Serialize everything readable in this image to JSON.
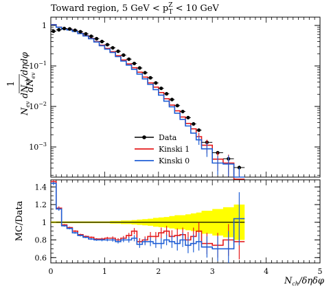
{
  "chart_data": [
    {
      "type": "line",
      "title": "Toward region, 5 GeV < p",
      "title_sup": "Z",
      "title_sub": "T",
      "title_tail": " < 10 GeV",
      "ylabel_prefix": "1",
      "ylabel_num": "dN",
      "ylabel_num_sub": "ev",
      "ylabel_den_n": "N",
      "ylabel_den_n_sub": "ev",
      "ylabel_den_tail": " dN",
      "ylabel_den_sub": "ch",
      "ylabel_den_end": "/dηdφ",
      "yscale": "log",
      "ylim": [
        0.00018,
        1.6
      ],
      "xlim": [
        0,
        5
      ],
      "yticks": [
        {
          "value": 1,
          "label": "1"
        },
        {
          "value": 0.1,
          "label": "10",
          "sup": "−1"
        },
        {
          "value": 0.01,
          "label": "10",
          "sup": "−2"
        },
        {
          "value": 0.001,
          "label": "10",
          "sup": "−3"
        }
      ],
      "legend": {
        "position": "bottom-center",
        "entries": [
          {
            "label": "Data",
            "color": "#000000",
            "marker": "point"
          },
          {
            "label": "Kinski 1",
            "color": "#e41a1c",
            "marker": "line"
          },
          {
            "label": "Kinski 0",
            "color": "#1f5fd6",
            "marker": "line"
          }
        ]
      },
      "bin_edges": [
        0.0,
        0.1,
        0.2,
        0.3,
        0.4,
        0.5,
        0.6,
        0.7,
        0.8,
        0.9,
        1.0,
        1.1,
        1.2,
        1.3,
        1.4,
        1.5,
        1.6,
        1.7,
        1.8,
        1.9,
        2.0,
        2.1,
        2.2,
        2.3,
        2.4,
        2.5,
        2.6,
        2.7,
        2.8,
        3.0,
        3.2,
        3.4,
        3.6
      ],
      "series": [
        {
          "name": "Data",
          "color": "#000000",
          "style": "points",
          "values": [
            0.72,
            0.78,
            0.84,
            0.82,
            0.76,
            0.7,
            0.62,
            0.54,
            0.47,
            0.4,
            0.335,
            0.28,
            0.23,
            0.185,
            0.147,
            0.115,
            0.089,
            0.068,
            0.051,
            0.038,
            0.028,
            0.0205,
            0.0148,
            0.0105,
            0.0075,
            0.0053,
            0.0037,
            0.0026,
            0.0013,
            0.00072,
            0.00051,
            0.00031
          ]
        },
        {
          "name": "Kinski 1",
          "color": "#e41a1c",
          "style": "step",
          "values": [
            1.05,
            0.91,
            0.82,
            0.78,
            0.72,
            0.64,
            0.56,
            0.48,
            0.4,
            0.325,
            0.27,
            0.225,
            0.18,
            0.14,
            0.112,
            0.09,
            0.07,
            0.053,
            0.038,
            0.03,
            0.022,
            0.0155,
            0.0108,
            0.0078,
            0.0055,
            0.0038,
            0.0028,
            0.0018,
            0.0011,
            0.0005,
            0.0004,
            0.00016
          ]
        },
        {
          "name": "Kinski 0",
          "color": "#1f5fd6",
          "style": "step",
          "values": [
            1.04,
            0.9,
            0.81,
            0.77,
            0.71,
            0.63,
            0.55,
            0.47,
            0.39,
            0.315,
            0.26,
            0.215,
            0.17,
            0.132,
            0.105,
            0.082,
            0.063,
            0.048,
            0.035,
            0.026,
            0.019,
            0.0135,
            0.0098,
            0.0068,
            0.0048,
            0.0033,
            0.0022,
            0.0015,
            0.0009,
            0.0004,
            0.00038,
            0.00018
          ]
        }
      ]
    },
    {
      "type": "line",
      "ylabel": "MC/Data",
      "xlabel_prefix": "N",
      "xlabel_sub": "ch",
      "xlabel_tail": "/δηδφ",
      "ylim": [
        0.54,
        1.48
      ],
      "xlim": [
        0,
        5
      ],
      "yticks": [
        0.6,
        0.8,
        1.0,
        1.2,
        1.4
      ],
      "ytick_labels": [
        "0.6",
        "0.8",
        "1",
        "1.2",
        "1.4"
      ],
      "xticks": [
        0,
        1,
        2,
        3,
        4,
        5
      ],
      "xtick_labels": [
        "0",
        "1",
        "2",
        "3",
        "4",
        "5"
      ],
      "reference_line": 1.0,
      "uncertainty_band_color": "#ffff00",
      "bin_edges": [
        0.0,
        0.1,
        0.2,
        0.3,
        0.4,
        0.5,
        0.6,
        0.7,
        0.8,
        0.9,
        1.0,
        1.1,
        1.2,
        1.3,
        1.4,
        1.5,
        1.6,
        1.7,
        1.8,
        1.9,
        2.0,
        2.1,
        2.2,
        2.3,
        2.4,
        2.5,
        2.6,
        2.7,
        2.8,
        3.0,
        3.2,
        3.4,
        3.6
      ],
      "band_halfwidth": [
        0.01,
        0.01,
        0.01,
        0.01,
        0.01,
        0.01,
        0.01,
        0.01,
        0.01,
        0.01,
        0.01,
        0.015,
        0.015,
        0.02,
        0.02,
        0.025,
        0.03,
        0.035,
        0.04,
        0.05,
        0.055,
        0.06,
        0.07,
        0.08,
        0.08,
        0.09,
        0.1,
        0.11,
        0.13,
        0.15,
        0.17,
        0.2
      ],
      "series": [
        {
          "name": "Kinski 1",
          "color": "#e41a1c",
          "values": [
            1.46,
            1.16,
            0.97,
            0.94,
            0.9,
            0.86,
            0.84,
            0.83,
            0.81,
            0.81,
            0.82,
            0.82,
            0.8,
            0.82,
            0.85,
            0.9,
            0.78,
            0.8,
            0.84,
            0.84,
            0.88,
            0.9,
            0.84,
            0.85,
            0.86,
            0.8,
            0.84,
            0.9,
            0.76,
            0.74,
            0.8,
            0.78
          ],
          "errors": [
            0.02,
            0.02,
            0.01,
            0.01,
            0.01,
            0.01,
            0.01,
            0.01,
            0.01,
            0.015,
            0.015,
            0.02,
            0.02,
            0.025,
            0.03,
            0.035,
            0.04,
            0.04,
            0.05,
            0.05,
            0.06,
            0.06,
            0.07,
            0.08,
            0.08,
            0.09,
            0.1,
            0.1,
            0.12,
            0.14,
            0.18,
            0.2
          ]
        },
        {
          "name": "Kinski 0",
          "color": "#1f5fd6",
          "values": [
            1.44,
            1.15,
            0.96,
            0.93,
            0.88,
            0.85,
            0.83,
            0.81,
            0.8,
            0.8,
            0.8,
            0.8,
            0.78,
            0.8,
            0.8,
            0.82,
            0.75,
            0.78,
            0.78,
            0.76,
            0.76,
            0.8,
            0.78,
            0.76,
            0.8,
            0.74,
            0.76,
            0.78,
            0.72,
            0.7,
            0.7,
            1.04
          ],
          "errors": [
            0.02,
            0.02,
            0.01,
            0.01,
            0.01,
            0.01,
            0.01,
            0.01,
            0.01,
            0.015,
            0.015,
            0.02,
            0.02,
            0.025,
            0.03,
            0.035,
            0.04,
            0.04,
            0.05,
            0.05,
            0.06,
            0.06,
            0.07,
            0.08,
            0.08,
            0.09,
            0.1,
            0.1,
            0.12,
            0.14,
            0.2,
            0.3
          ]
        }
      ]
    }
  ]
}
